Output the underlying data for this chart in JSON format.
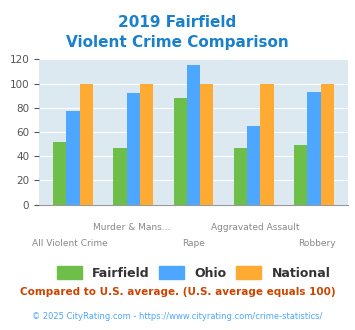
{
  "title_line1": "2019 Fairfield",
  "title_line2": "Violent Crime Comparison",
  "x_top_labels": [
    "",
    "Murder & Mans...",
    "",
    "Aggravated Assault",
    ""
  ],
  "x_bottom_labels": [
    "All Violent Crime",
    "",
    "Rape",
    "",
    "Robbery"
  ],
  "fairfield": [
    52,
    47,
    88,
    47,
    49
  ],
  "ohio": [
    77,
    92,
    115,
    65,
    93
  ],
  "national": [
    100,
    100,
    100,
    100,
    100
  ],
  "fairfield_color": "#6dbf4a",
  "ohio_color": "#4da6ff",
  "national_color": "#ffaa33",
  "background_color": "#dce9f0",
  "title_color": "#1a80cc",
  "ylim": [
    0,
    120
  ],
  "yticks": [
    0,
    20,
    40,
    60,
    80,
    100,
    120
  ],
  "footnote1": "Compared to U.S. average. (U.S. average equals 100)",
  "footnote2": "© 2025 CityRating.com - https://www.cityrating.com/crime-statistics/",
  "footnote1_color": "#cc4400",
  "footnote2_color": "#4da6ff",
  "legend_labels": [
    "Fairfield",
    "Ohio",
    "National"
  ]
}
